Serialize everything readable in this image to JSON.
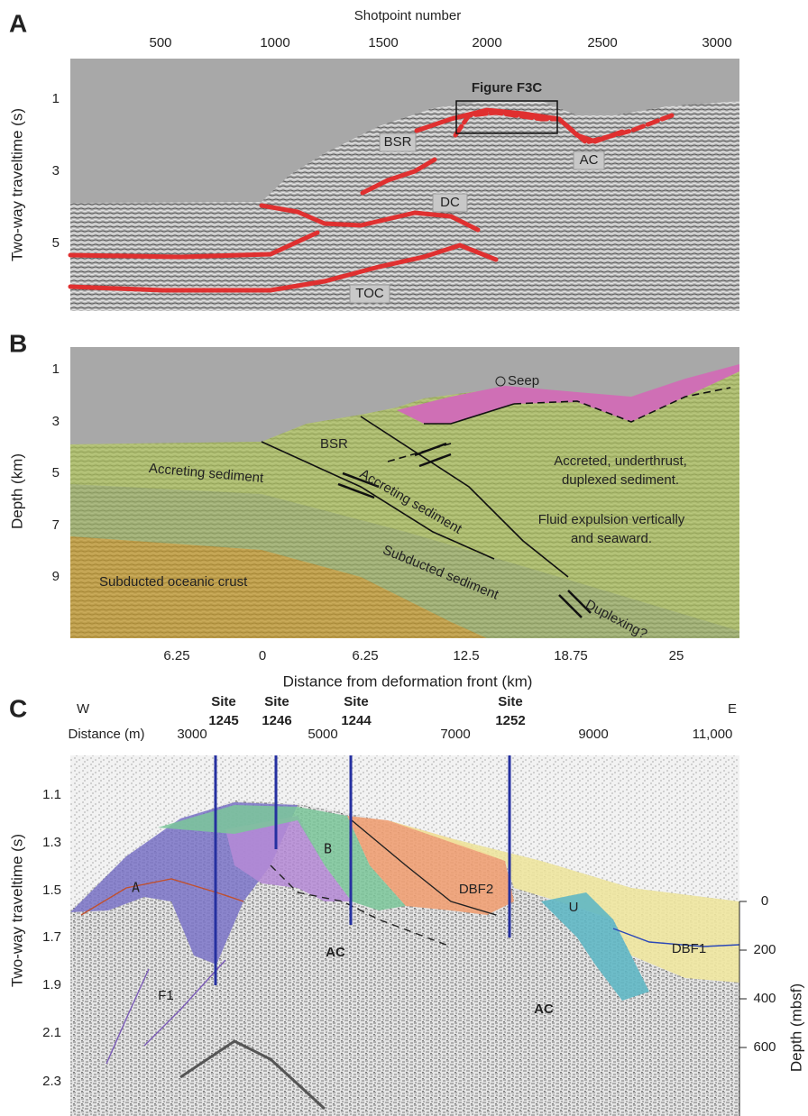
{
  "panel_a": {
    "letter": "A",
    "x_axis_label": "Shotpoint number",
    "x_ticks": [
      "500",
      "1000",
      "1500",
      "2000",
      "2500",
      "3000"
    ],
    "y_axis_label": "Two-way traveltime (s)",
    "y_ticks": [
      "1",
      "3",
      "5"
    ],
    "box_label": "Figure F3C",
    "labels": [
      "BSR",
      "AC",
      "DC",
      "TOC"
    ]
  },
  "panel_b": {
    "letter": "B",
    "y_axis_label": "Depth (km)",
    "y_ticks": [
      "1",
      "3",
      "5",
      "7",
      "9"
    ],
    "x_axis_label": "Distance from deformation front (km)",
    "x_ticks": [
      "6.25",
      "0",
      "6.25",
      "12.5",
      "18.75",
      "25"
    ],
    "labels": {
      "seep": "Seep",
      "bsr": "BSR",
      "accreting_1": "Accreting sediment",
      "accreting_2": "Accreting sediment",
      "accreted": [
        "Accreted, underthrust,",
        "duplexed sediment."
      ],
      "fluid": [
        "Fluid expulsion vertically",
        "and seaward."
      ],
      "subducted_sediment": "Subducted sediment",
      "oceanic_crust": "Subducted oceanic crust",
      "duplexing": "Duplexing?"
    }
  },
  "panel_c": {
    "letter": "C",
    "west": "W",
    "east": "E",
    "x_axis_label": "Distance (m)",
    "x_ticks": [
      "3000",
      "5000",
      "7000",
      "9000",
      "11,000"
    ],
    "sites": [
      {
        "name": "Site",
        "number": "1245"
      },
      {
        "name": "Site",
        "number": "1246"
      },
      {
        "name": "Site",
        "number": "1244"
      },
      {
        "name": "Site",
        "number": "1252"
      }
    ],
    "y_axis_label": "Two-way traveltime (s)",
    "y_ticks": [
      "1.1",
      "1.3",
      "1.5",
      "1.7",
      "1.9",
      "2.1",
      "2.3"
    ],
    "y2_axis_label": "Depth (mbsf)",
    "y2_ticks": [
      "0",
      "200",
      "400",
      "600"
    ],
    "labels": [
      "A",
      "B",
      "DBF2",
      "U",
      "DBF1",
      "AC",
      "AC",
      "F1"
    ]
  }
}
